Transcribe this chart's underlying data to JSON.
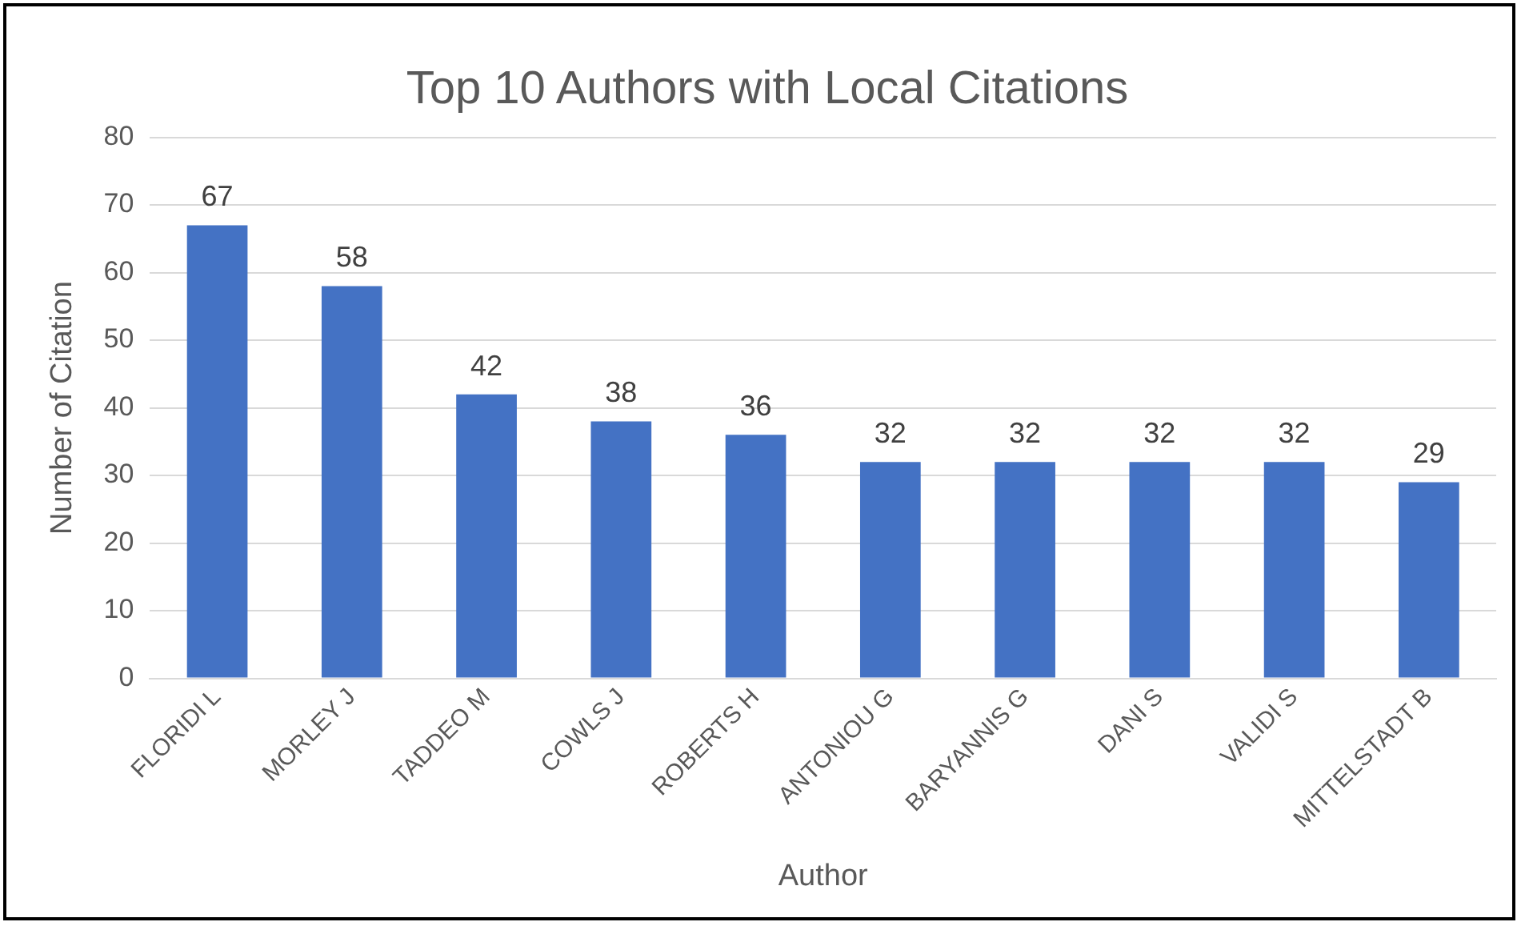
{
  "chart_data": {
    "type": "bar",
    "title": "Top 10 Authors with Local Citations",
    "xlabel": "Author",
    "ylabel": "Number of Citation",
    "categories": [
      "FLORIDI L",
      "MORLEY J",
      "TADDEO M",
      "COWLS J",
      "ROBERTS H",
      "ANTONIOU G",
      "BARYANNIS G",
      "DANI S",
      "VALIDI S",
      "MITTELSTADT B"
    ],
    "values": [
      67,
      58,
      42,
      38,
      36,
      32,
      32,
      32,
      32,
      29
    ],
    "color": "#4472c4",
    "ylim": [
      0,
      80
    ],
    "yticks": [
      0,
      10,
      20,
      30,
      40,
      50,
      60,
      70,
      80
    ],
    "grid": "y",
    "data_labels": true,
    "legend": false
  }
}
